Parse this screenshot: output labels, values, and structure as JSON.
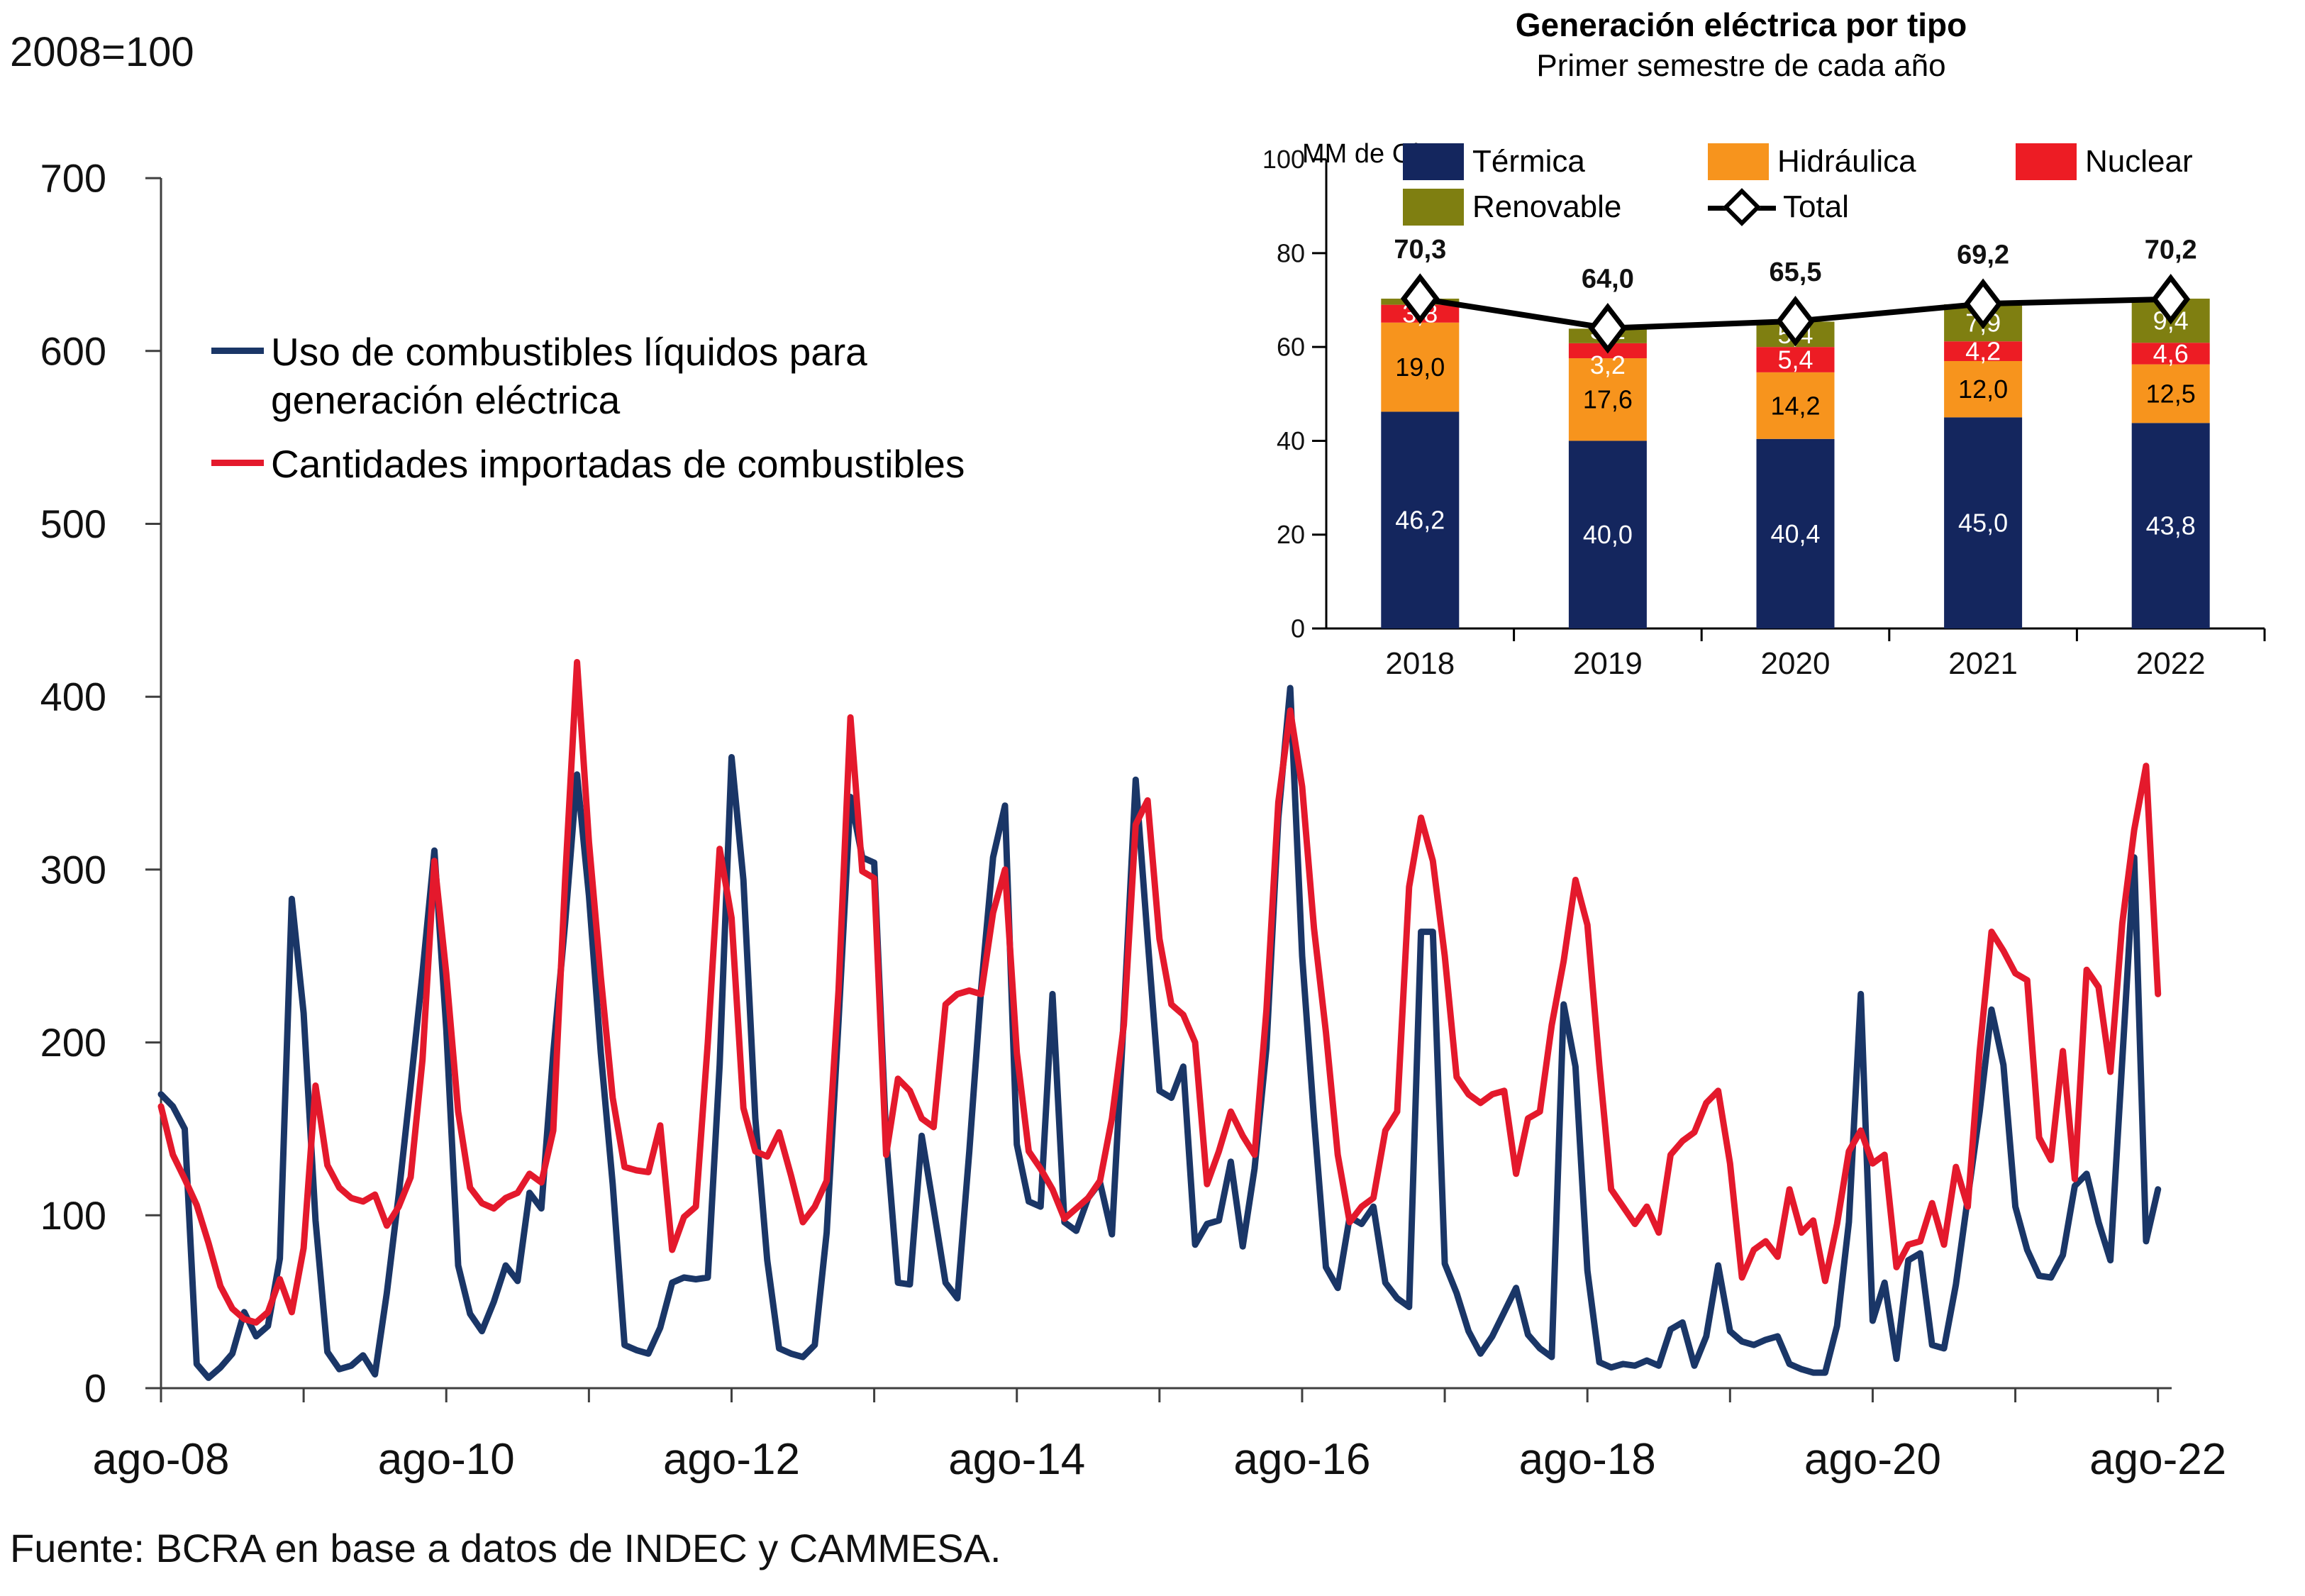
{
  "page": {
    "index_note": "2008=100",
    "source": "Fuente: BCRA en base a datos de INDEC y CAMMESA."
  },
  "main_chart_legend": {
    "series1_line1": "Uso de combustibles líquidos para",
    "series1_line2": "generación eléctrica",
    "series2": "Cantidades importadas de combustibles"
  },
  "inset": {
    "title": "Generación eléctrica por tipo",
    "subtitle": "Primer semestre de cada año",
    "unit": "MM de Gh",
    "legend": {
      "termica": "Térmica",
      "hidraulica": "Hidráulica",
      "nuclear": "Nuclear",
      "renovable": "Renovable",
      "total": "Total"
    }
  },
  "chart_data": [
    {
      "type": "line",
      "title": "",
      "ylabel": "2008=100",
      "ylim": [
        0,
        700
      ],
      "yticks": [
        0,
        100,
        200,
        300,
        400,
        500,
        600,
        700
      ],
      "x_start": "ago-08",
      "x_end": "ago-22",
      "x_frequency": "monthly",
      "xtick_labels": [
        "ago-08",
        "ago-10",
        "ago-12",
        "ago-14",
        "ago-16",
        "ago-18",
        "ago-20",
        "ago-22"
      ],
      "grid": false,
      "legend_position": "top-left-inside",
      "series": [
        {
          "name": "Uso de combustibles líquidos para generación eléctrica",
          "color": "#1a3667",
          "values": [
            170,
            163,
            150,
            14,
            6,
            12,
            20,
            44,
            30,
            36,
            75,
            283,
            217,
            97,
            21,
            11,
            13,
            19,
            8,
            55,
            112,
            175,
            240,
            311,
            208,
            71,
            43,
            33,
            50,
            71,
            62,
            113,
            104,
            194,
            269,
            355,
            285,
            194,
            118,
            25,
            22,
            20,
            35,
            61,
            64,
            63,
            64,
            187,
            365,
            294,
            156,
            74,
            23,
            20,
            18,
            25,
            90,
            212,
            342,
            307,
            304,
            145,
            61,
            60,
            146,
            104,
            61,
            52,
            137,
            231,
            307,
            337,
            141,
            108,
            105,
            228,
            96,
            91,
            110,
            119,
            89,
            215,
            352,
            260,
            172,
            168,
            186,
            83,
            95,
            97,
            131,
            82,
            127,
            197,
            330,
            405,
            250,
            156,
            70,
            58,
            99,
            95,
            105,
            61,
            52,
            47,
            264,
            264,
            72,
            55,
            33,
            20,
            30,
            44,
            58,
            31,
            23,
            18,
            222,
            186,
            68,
            15,
            12,
            14,
            13,
            16,
            13,
            34,
            38,
            13,
            30,
            71,
            33,
            27,
            25,
            28,
            30,
            14,
            11,
            9,
            9,
            36,
            96,
            228,
            39,
            61,
            17,
            74,
            78,
            25,
            23,
            60,
            110,
            160,
            219,
            187,
            105,
            80,
            65,
            64,
            77,
            117,
            124,
            96,
            74,
            190,
            307,
            85,
            115
          ]
        },
        {
          "name": "Cantidades importadas de combustibles",
          "color": "#e4192c",
          "values": [
            163,
            135,
            121,
            106,
            84,
            59,
            46,
            40,
            38,
            44,
            63,
            44,
            81,
            175,
            129,
            116,
            110,
            108,
            112,
            94,
            105,
            122,
            190,
            305,
            240,
            160,
            116,
            107,
            104,
            110,
            113,
            124,
            119,
            149,
            294,
            420,
            316,
            238,
            168,
            128,
            126,
            125,
            152,
            80,
            99,
            105,
            200,
            312,
            272,
            162,
            137,
            134,
            148,
            123,
            96,
            105,
            120,
            230,
            388,
            299,
            295,
            135,
            179,
            172,
            156,
            151,
            222,
            228,
            230,
            228,
            275,
            300,
            194,
            137,
            127,
            115,
            98,
            104,
            110,
            120,
            156,
            210,
            326,
            340,
            260,
            222,
            216,
            200,
            118,
            137,
            160,
            146,
            135,
            219,
            339,
            392,
            348,
            266,
            206,
            135,
            96,
            105,
            110,
            149,
            160,
            290,
            330,
            305,
            250,
            180,
            170,
            165,
            170,
            172,
            124,
            156,
            160,
            210,
            247,
            294,
            268,
            187,
            115,
            105,
            95,
            105,
            90,
            135,
            143,
            148,
            165,
            172,
            130,
            64,
            80,
            85,
            76,
            115,
            90,
            97,
            62,
            95,
            137,
            149,
            130,
            135,
            70,
            83,
            85,
            107,
            83,
            128,
            105,
            195,
            264,
            253,
            240,
            236,
            145,
            132,
            195,
            121,
            242,
            232,
            183,
            269,
            323,
            360,
            228
          ]
        }
      ]
    },
    {
      "type": "stacked-bar-with-line",
      "title": "Generación eléctrica por tipo",
      "subtitle": "Primer semestre de cada año",
      "unit": "MM de Gh",
      "categories": [
        "2018",
        "2019",
        "2020",
        "2021",
        "2022"
      ],
      "ylim": [
        0,
        100
      ],
      "yticks": [
        0,
        20,
        40,
        60,
        80,
        100
      ],
      "grid": false,
      "legend_position": "top-inside",
      "series": [
        {
          "name": "Térmica",
          "color": "#14265e",
          "values": [
            46.2,
            40.0,
            40.4,
            45.0,
            43.8
          ],
          "labels": [
            "46,2",
            "40,0",
            "40,4",
            "45,0",
            "43,8"
          ],
          "label_color": "#ffffff"
        },
        {
          "name": "Hidráulica",
          "color": "#f7941d",
          "values": [
            19.0,
            17.6,
            14.2,
            12.0,
            12.5
          ],
          "labels": [
            "19,0",
            "17,6",
            "14,2",
            "12,0",
            "12,5"
          ],
          "label_color": "#000000"
        },
        {
          "name": "Nuclear",
          "color": "#ed1c24",
          "values": [
            3.8,
            3.2,
            5.4,
            4.2,
            4.6
          ],
          "labels": [
            "3,8",
            "3,2",
            "5,4",
            "4,2",
            "4,6"
          ],
          "label_color": "#ffffff",
          "label_dy": [
            0,
            20,
            0,
            0,
            0
          ]
        },
        {
          "name": "Renovable",
          "color": "#7f7f11",
          "values": [
            1.3,
            3.1,
            5.4,
            7.9,
            9.4
          ],
          "labels": [
            "",
            "3,1",
            "5,4",
            "7,9",
            "9,4"
          ],
          "label_color": "#ffffff",
          "label_dy": [
            0,
            -8,
            0,
            0,
            0
          ]
        }
      ],
      "total": {
        "name": "Total",
        "color": "#000000",
        "marker": "diamond-white",
        "values": [
          70.3,
          64.0,
          65.5,
          69.2,
          70.2
        ],
        "labels": [
          "70,3",
          "64,0",
          "65,5",
          "69,2",
          "70,2"
        ]
      }
    }
  ]
}
